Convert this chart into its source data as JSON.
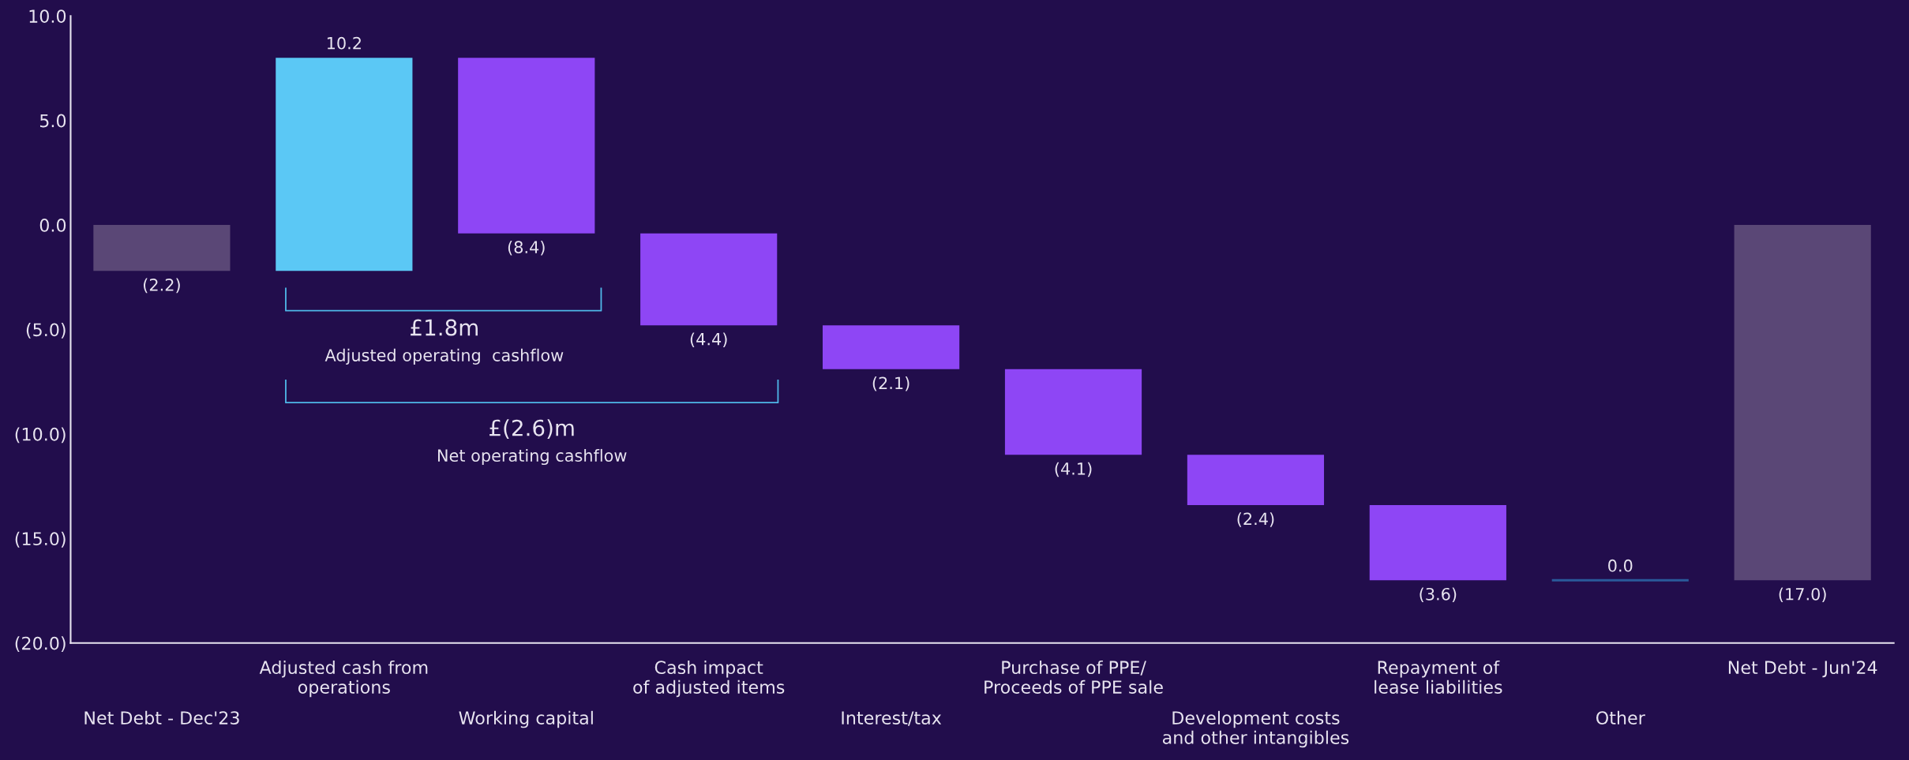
{
  "chart_data": {
    "type": "bar",
    "categories": [
      "Net Debt - Dec'23",
      "Adjusted cash from\noperations",
      "Working capital",
      "Cash impact\nof adjusted items",
      "Interest/tax",
      "Purchase of PPE/\nProceeds of PPE sale",
      "Development costs\nand other intangibles",
      "Repayment of\nlease liabilities",
      "Other",
      "Net Debt - Jun'24"
    ],
    "base": [
      0,
      -2.2,
      8.0,
      -0.4,
      -4.8,
      -6.9,
      -11.0,
      -13.4,
      -17.0,
      0
    ],
    "values": [
      -2.2,
      10.2,
      -8.4,
      -4.4,
      -2.1,
      -4.1,
      -2.4,
      -3.6,
      0.0,
      -17.0
    ],
    "colors": [
      "#5a4776",
      "#5bc8f5",
      "#8e46f5",
      "#8e46f5",
      "#8e46f5",
      "#8e46f5",
      "#8e46f5",
      "#8e46f5",
      "#2a5a9a",
      "#5a4776"
    ],
    "value_labels": [
      "(2.2)",
      "10.2",
      "(8.4)",
      "(4.4)",
      "(2.1)",
      "(4.1)",
      "(2.4)",
      "(3.6)",
      "0.0",
      "(17.0)"
    ],
    "ylim": [
      -20,
      10
    ],
    "yticks": [
      {
        "value": 10,
        "label": "10.0"
      },
      {
        "value": 5,
        "label": "5.0"
      },
      {
        "value": 0,
        "label": "0.0"
      },
      {
        "value": -5,
        "label": "(5.0)"
      },
      {
        "value": -10,
        "label": "(10.0)"
      },
      {
        "value": -15,
        "label": "(15.0)"
      },
      {
        "value": -20,
        "label": "(20.0)"
      }
    ],
    "annotations": [
      "£1.8m",
      "Adjusted operating  cashflow",
      "£(2.6)m",
      "Net operating cashflow"
    ],
    "grid": false
  }
}
